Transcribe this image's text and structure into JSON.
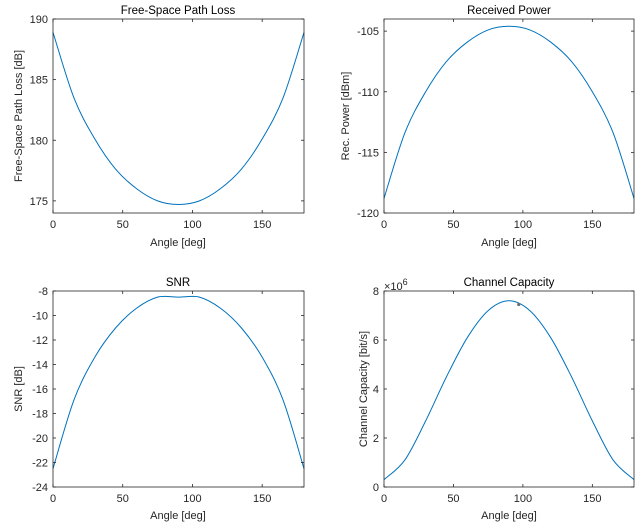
{
  "line_color": "#0072BD",
  "axis_color": "#262626",
  "chart_data": [
    {
      "type": "line",
      "title": "Free-Space Path Loss",
      "xlabel": "Angle [deg]",
      "ylabel": "Free-Space Path Loss [dB]",
      "xlim": [
        0,
        180
      ],
      "ylim": [
        174,
        190
      ],
      "xticks": [
        "0",
        "50",
        "100",
        "150"
      ],
      "xtick_values": [
        0,
        50,
        100,
        150
      ],
      "yticks": [
        "175",
        "180",
        "185",
        "190"
      ],
      "ytick_values": [
        175,
        180,
        185,
        190
      ],
      "x": [
        0,
        15,
        30,
        45,
        60,
        75,
        90,
        105,
        120,
        135,
        150,
        165,
        180
      ],
      "y": [
        188.9,
        183.5,
        180.1,
        177.6,
        176.0,
        175.0,
        174.7,
        175.0,
        176.0,
        177.6,
        180.1,
        183.5,
        188.9
      ],
      "grid": false
    },
    {
      "type": "line",
      "title": "Received Power",
      "xlabel": "Angle [deg]",
      "ylabel": "Rec. Power [dBm]",
      "xlim": [
        0,
        180
      ],
      "ylim": [
        -120,
        -104
      ],
      "xticks": [
        "0",
        "50",
        "100",
        "150"
      ],
      "xtick_values": [
        0,
        50,
        100,
        150
      ],
      "yticks": [
        "-120",
        "-115",
        "-110",
        "-105"
      ],
      "ytick_values": [
        -120,
        -115,
        -110,
        -105
      ],
      "x": [
        0,
        15,
        30,
        45,
        60,
        75,
        90,
        105,
        120,
        135,
        150,
        165,
        180
      ],
      "y": [
        -118.8,
        -113.4,
        -110.0,
        -107.5,
        -105.9,
        -104.9,
        -104.6,
        -104.9,
        -105.9,
        -107.5,
        -110.0,
        -113.4,
        -118.8
      ],
      "grid": false
    },
    {
      "type": "line",
      "title": "SNR",
      "xlabel": "Angle [deg]",
      "ylabel": "SNR [dB]",
      "xlim": [
        0,
        180
      ],
      "ylim": [
        -24,
        -8
      ],
      "xticks": [
        "0",
        "50",
        "100",
        "150"
      ],
      "xtick_values": [
        0,
        50,
        100,
        150
      ],
      "yticks": [
        "-24",
        "-22",
        "-20",
        "-18",
        "-16",
        "-14",
        "-12",
        "-10",
        "-8"
      ],
      "ytick_values": [
        -24,
        -22,
        -20,
        -18,
        -16,
        -14,
        -12,
        -10,
        -8
      ],
      "x": [
        0,
        15,
        30,
        45,
        60,
        75,
        90,
        105,
        120,
        135,
        150,
        165,
        180
      ],
      "y": [
        -22.5,
        -16.9,
        -13.4,
        -11.0,
        -9.4,
        -8.5,
        -8.5,
        -8.5,
        -9.4,
        -11.0,
        -13.4,
        -16.9,
        -22.5
      ],
      "grid": false
    },
    {
      "type": "line",
      "title": "Channel Capacity",
      "xlabel": "Angle [deg]",
      "ylabel": "Channel Capacity [bit/s]",
      "xlim": [
        0,
        180
      ],
      "ylim": [
        0,
        8
      ],
      "y_exponent": "×10",
      "y_exponent_power": "6",
      "xticks": [
        "0",
        "50",
        "100",
        "150"
      ],
      "xtick_values": [
        0,
        50,
        100,
        150
      ],
      "yticks": [
        "0",
        "2",
        "4",
        "6",
        "8"
      ],
      "ytick_values": [
        0,
        2,
        4,
        6,
        8
      ],
      "x": [
        0,
        15,
        30,
        45,
        60,
        75,
        90,
        105,
        120,
        135,
        150,
        165,
        180
      ],
      "y": [
        0.3,
        1.1,
        2.7,
        4.5,
        6.1,
        7.2,
        7.6,
        7.2,
        6.1,
        4.5,
        2.7,
        1.1,
        0.3
      ],
      "marker_point": [
        97,
        7.45
      ],
      "grid": false
    }
  ]
}
